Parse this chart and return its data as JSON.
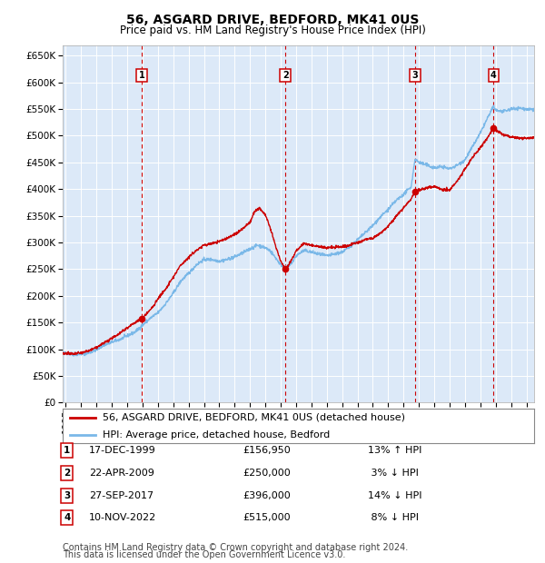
{
  "title": "56, ASGARD DRIVE, BEDFORD, MK41 0US",
  "subtitle": "Price paid vs. HM Land Registry's House Price Index (HPI)",
  "ylabel_ticks": [
    "£0",
    "£50K",
    "£100K",
    "£150K",
    "£200K",
    "£250K",
    "£300K",
    "£350K",
    "£400K",
    "£450K",
    "£500K",
    "£550K",
    "£600K",
    "£650K"
  ],
  "ytick_values": [
    0,
    50000,
    100000,
    150000,
    200000,
    250000,
    300000,
    350000,
    400000,
    450000,
    500000,
    550000,
    600000,
    650000
  ],
  "ylim": [
    0,
    670000
  ],
  "xlim_start": 1994.8,
  "xlim_end": 2025.5,
  "plot_bg_color": "#dce9f8",
  "grid_color": "#ffffff",
  "hpi_line_color": "#7ab8e8",
  "price_line_color": "#cc0000",
  "marker_color": "#cc0000",
  "vline_color": "#cc0000",
  "transactions": [
    {
      "num": 1,
      "date": "17-DEC-1999",
      "price": 156950,
      "pct": "13%",
      "dir": "↑",
      "year": 1999.96
    },
    {
      "num": 2,
      "date": "22-APR-2009",
      "price": 250000,
      "pct": "3%",
      "dir": "↓",
      "year": 2009.31
    },
    {
      "num": 3,
      "date": "27-SEP-2017",
      "price": 396000,
      "pct": "14%",
      "dir": "↓",
      "year": 2017.74
    },
    {
      "num": 4,
      "date": "10-NOV-2022",
      "price": 515000,
      "pct": "8%",
      "dir": "↓",
      "year": 2022.86
    }
  ],
  "legend_line1": "56, ASGARD DRIVE, BEDFORD, MK41 0US (detached house)",
  "legend_line2": "HPI: Average price, detached house, Bedford",
  "footer1": "Contains HM Land Registry data © Crown copyright and database right 2024.",
  "footer2": "This data is licensed under the Open Government Licence v3.0.",
  "title_fontsize": 10,
  "subtitle_fontsize": 8.5,
  "tick_fontsize": 7.5,
  "legend_fontsize": 8,
  "table_fontsize": 8,
  "footer_fontsize": 7,
  "table_rows": [
    {
      "num": "1",
      "date": "17-DEC-1999",
      "price": "£156,950",
      "pct": "13% ↑ HPI"
    },
    {
      "num": "2",
      "date": "22-APR-2009",
      "price": "£250,000",
      "pct": " 3% ↓ HPI"
    },
    {
      "num": "3",
      "date": "27-SEP-2017",
      "price": "£396,000",
      "pct": "14% ↓ HPI"
    },
    {
      "num": "4",
      "date": "10-NOV-2022",
      "price": "£515,000",
      "pct": " 8% ↓ HPI"
    }
  ]
}
